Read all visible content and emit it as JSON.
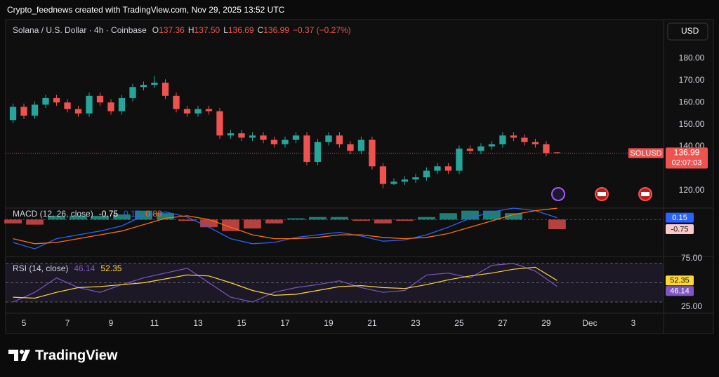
{
  "header": "Crypto_feednews created with TradingView.com, Nov 29, 2025 13:52 UTC",
  "currency": "USD",
  "footer": "TradingView",
  "chart_data": [
    {
      "type": "candlestick",
      "title": "Solana / U.S. Dollar · 4h · Coinbase",
      "legend": [
        {
          "label": "O",
          "value": "137.36"
        },
        {
          "label": "H",
          "value": "137.50"
        },
        {
          "label": "L",
          "value": "136.69"
        },
        {
          "label": "C",
          "value": "136.99"
        }
      ],
      "change": "−0.37 (−0.27%)",
      "symbol": "SOLUSD",
      "countdown": "02:07:03",
      "colors": {
        "up": "#26a69a",
        "down": "#ef5350"
      },
      "x": [
        4.5,
        5,
        5.5,
        6,
        6.5,
        7,
        7.5,
        8,
        8.5,
        9,
        9.5,
        10,
        10.5,
        11,
        11.5,
        12,
        12.5,
        13,
        13.5,
        14,
        14.5,
        15,
        15.5,
        16,
        16.5,
        17,
        17.5,
        18,
        18.5,
        19,
        19.5,
        20,
        20.5,
        21,
        21.5,
        22,
        22.5,
        23,
        23.5,
        24,
        24.5,
        25,
        25.5,
        26,
        26.5,
        27,
        27.5,
        28,
        28.5,
        29,
        29.5
      ],
      "open": [
        152,
        158,
        154,
        159,
        162,
        160,
        157,
        155,
        163,
        160,
        156,
        162,
        167,
        168,
        169,
        163,
        157,
        155,
        157,
        156,
        145,
        146,
        144,
        145,
        143,
        141,
        143,
        145,
        133,
        142,
        145,
        141,
        138,
        143,
        131,
        123,
        124,
        125,
        126,
        129,
        131,
        129,
        139,
        138,
        140,
        141,
        145,
        144,
        142,
        141,
        137.36
      ],
      "high": [
        159.5,
        159.5,
        160.5,
        163.5,
        163.5,
        161.5,
        158.5,
        164.5,
        164.5,
        161.5,
        163.5,
        168.5,
        169.5,
        172,
        170.5,
        164.5,
        158.5,
        158.5,
        158.5,
        157.5,
        147.5,
        147.5,
        146.5,
        146.5,
        144.5,
        144.5,
        146.5,
        146.5,
        143.5,
        146.5,
        146.5,
        142.5,
        144.5,
        144.5,
        132.5,
        125.5,
        126.5,
        127.5,
        130.5,
        132.5,
        132.5,
        140.5,
        140.5,
        141.5,
        142.5,
        146.5,
        146.5,
        145.5,
        143.5,
        142.5,
        137.5
      ],
      "low": [
        150.5,
        152.5,
        152.5,
        157.5,
        158.5,
        155.5,
        153.5,
        153.5,
        158.5,
        154.5,
        154.5,
        160.5,
        165.5,
        166.5,
        161.5,
        155.5,
        153.5,
        153.5,
        154.5,
        143.5,
        143.5,
        142.5,
        142.5,
        141.5,
        139.5,
        139.5,
        141.5,
        131.5,
        131.5,
        140.5,
        139.5,
        136.5,
        136.5,
        129.5,
        121,
        122.5,
        122.5,
        123.5,
        124.5,
        127.5,
        127.5,
        127.5,
        136.5,
        136.5,
        138.5,
        139.5,
        142.5,
        140.5,
        139.5,
        135.5,
        136.69
      ],
      "close": [
        158,
        154,
        159,
        162,
        160,
        157,
        155,
        163,
        160,
        156,
        162,
        167,
        168,
        169,
        163,
        157,
        155,
        157,
        156,
        145,
        146,
        144,
        145,
        143,
        141,
        143,
        145,
        133,
        142,
        145,
        141,
        138,
        143,
        131,
        123,
        124,
        125,
        126,
        129,
        131,
        129,
        139,
        138,
        140,
        141,
        145,
        144,
        142,
        141,
        137,
        136.99
      ],
      "ylim": [
        112,
        197
      ],
      "yticks": [
        {
          "value": 120,
          "label": "120.00"
        },
        {
          "value": 140,
          "label": "140.00"
        },
        {
          "value": 150,
          "label": "150.00"
        },
        {
          "value": 160,
          "label": "160.00"
        },
        {
          "value": 170,
          "label": "170.00"
        },
        {
          "value": 180,
          "label": "180.00"
        }
      ],
      "xlim": [
        4.16,
        34.39
      ],
      "xticks": [
        5,
        7,
        9,
        11,
        13,
        15,
        17,
        19,
        21,
        23,
        25,
        27,
        29,
        {
          "value": 31,
          "label": "Dec"
        },
        {
          "value": 33,
          "label": "3"
        }
      ],
      "grid": false
    },
    {
      "type": "macd",
      "title": "MACD (12, 26, close)",
      "x": [
        4.5,
        5.5,
        6.5,
        7.5,
        8.5,
        9.5,
        10.5,
        11.5,
        12.5,
        13.5,
        14.5,
        15.5,
        16.5,
        17.5,
        18.5,
        19.5,
        20.5,
        21.5,
        22.5,
        23.5,
        24.5,
        25.5,
        26.5,
        27.5,
        28.5,
        29.5
      ],
      "histogram": {
        "colors": [
          "#26a69a",
          "#ef5350"
        ],
        "values": [
          -0.3,
          -0.4,
          0.3,
          0.3,
          0.3,
          0.4,
          0.7,
          0.5,
          -0.1,
          -0.6,
          -0.9,
          -0.7,
          -0.3,
          0.1,
          0.2,
          0.2,
          -0.1,
          -0.3,
          -0.1,
          0.2,
          0.5,
          0.7,
          0.7,
          0.5,
          0.0,
          -0.75
        ]
      },
      "series": [
        {
          "color": "#2962ff",
          "values": [
            -1.8,
            -2.3,
            -1.5,
            -1.2,
            -0.9,
            -0.5,
            0.3,
            0.6,
            0.2,
            -0.6,
            -1.5,
            -1.9,
            -1.8,
            -1.4,
            -1.2,
            -1.0,
            -1.3,
            -1.7,
            -1.6,
            -1.2,
            -0.6,
            0.1,
            0.6,
            0.9,
            0.7,
            0.15
          ]
        },
        {
          "color": "#ff6d00",
          "values": [
            -1.5,
            -1.9,
            -1.8,
            -1.5,
            -1.2,
            -0.9,
            -0.4,
            0.1,
            0.3,
            0.0,
            -0.6,
            -1.2,
            -1.5,
            -1.5,
            -1.4,
            -1.2,
            -1.2,
            -1.4,
            -1.5,
            -1.4,
            -1.1,
            -0.6,
            -0.1,
            0.4,
            0.7,
            0.89
          ]
        }
      ],
      "ylim": [
        -2.9,
        0.9
      ]
    },
    {
      "type": "rsi",
      "title": "RSI (14, close)",
      "x": [
        4.5,
        5.5,
        6.5,
        7.5,
        8.5,
        9.5,
        10.5,
        11.5,
        12.5,
        13.5,
        14.5,
        15.5,
        16.5,
        17.5,
        18.5,
        19.5,
        20.5,
        21.5,
        22.5,
        23.5,
        24.5,
        25.5,
        26.5,
        27.5,
        28.5,
        29.5
      ],
      "series": [
        {
          "color": "#7e57c2",
          "values": [
            30,
            40,
            55,
            45,
            40,
            48,
            55,
            60,
            65,
            50,
            35,
            30,
            40,
            45,
            48,
            52,
            45,
            40,
            42,
            58,
            60,
            55,
            68,
            70,
            62,
            46.14
          ]
        },
        {
          "color": "#fdd835",
          "values": [
            35,
            34,
            40,
            45,
            46,
            48,
            50,
            54,
            58,
            57,
            50,
            42,
            37,
            38,
            42,
            46,
            47,
            45,
            44,
            48,
            53,
            57,
            60,
            64,
            66,
            52.35
          ]
        }
      ],
      "levels": [
        70,
        50,
        30
      ],
      "ylim": [
        18.4,
        77.2
      ],
      "yticks": [
        {
          "value": 25,
          "label": "25.00"
        },
        {
          "value": 75,
          "label": "75.00"
        }
      ]
    }
  ]
}
